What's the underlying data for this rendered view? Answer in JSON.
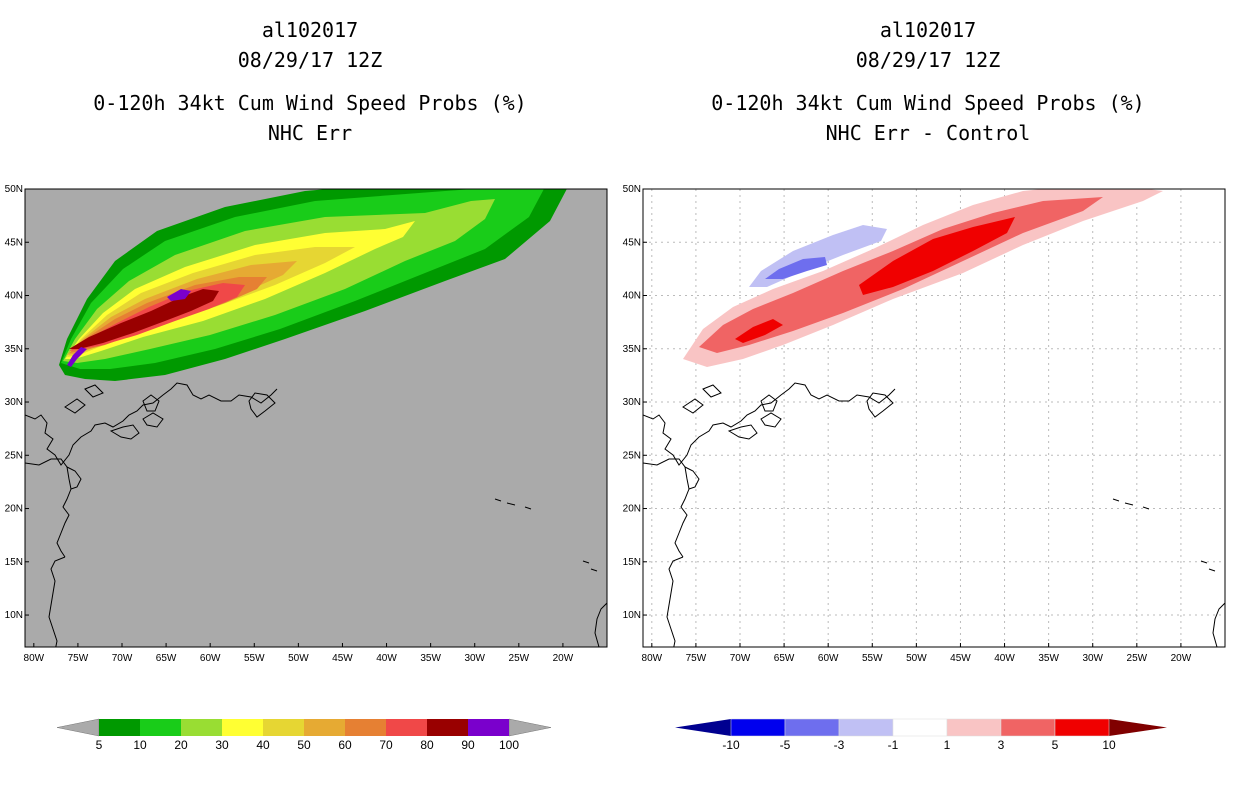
{
  "left": {
    "title_lines": [
      "al102017",
      "08/29/17 12Z",
      "0-120h 34kt Cum Wind Speed Probs (%)",
      "NHC Err"
    ],
    "lat_labels": [
      "50N",
      "45N",
      "40N",
      "35N",
      "30N",
      "25N",
      "20N",
      "15N",
      "10N"
    ],
    "lon_labels": [
      "80W",
      "75W",
      "70W",
      "65W",
      "60W",
      "55W",
      "50W",
      "45W",
      "40W",
      "35W",
      "30W",
      "25W",
      "20W"
    ],
    "colorbar": {
      "labels": [
        "5",
        "10",
        "20",
        "30",
        "40",
        "50",
        "60",
        "70",
        "80",
        "90",
        "100"
      ],
      "colors": [
        "#009900",
        "#19cc19",
        "#99dd33",
        "#ffff33",
        "#e6d633",
        "#e6aa33",
        "#e68033",
        "#f04848",
        "#990000",
        "#7a00cc"
      ],
      "end_color": "#aaaaaa"
    },
    "background_color": "#aaaaaa"
  },
  "right": {
    "title_lines": [
      "al102017",
      "08/29/17 12Z",
      "0-120h 34kt Cum Wind Speed Probs (%)",
      "NHC Err - Control"
    ],
    "lat_labels": [
      "50N",
      "45N",
      "40N",
      "35N",
      "30N",
      "25N",
      "20N",
      "15N",
      "10N"
    ],
    "lon_labels": [
      "80W",
      "75W",
      "70W",
      "65W",
      "60W",
      "55W",
      "50W",
      "45W",
      "40W",
      "35W",
      "30W",
      "25W",
      "20W"
    ],
    "colorbar": {
      "labels": [
        "-10",
        "-5",
        "-3",
        "-1",
        "1",
        "3",
        "5",
        "10"
      ],
      "colors": [
        "#0000ee",
        "#6e6eee",
        "#c0c0f4",
        "#ffffff",
        "#f9c4c4",
        "#f06464",
        "#f00000"
      ],
      "low_end_color": "#000090",
      "high_end_color": "#800000"
    }
  }
}
